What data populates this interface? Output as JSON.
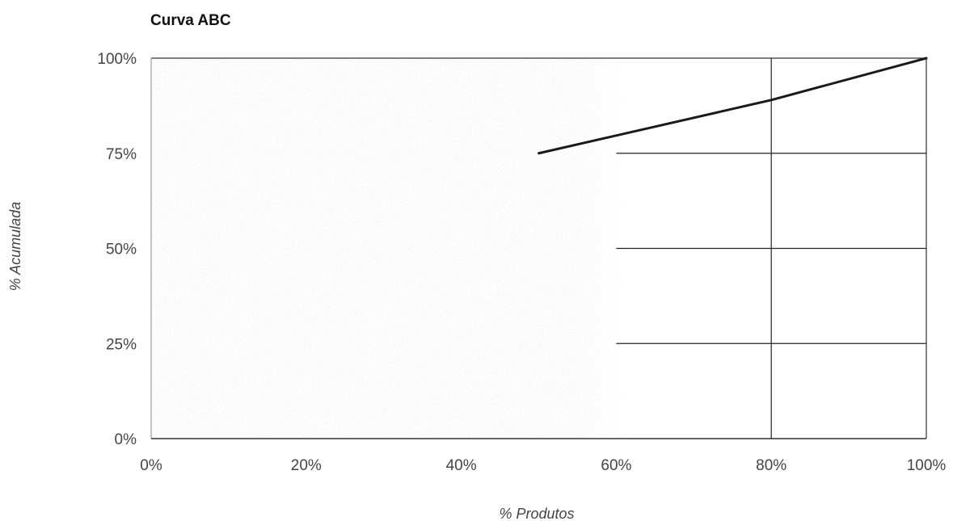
{
  "chart_data": {
    "type": "line",
    "title": "Curva ABC",
    "xlabel": "% Produtos",
    "ylabel": "% Acumulada",
    "xlim": [
      0,
      100
    ],
    "ylim": [
      0,
      100
    ],
    "x_ticks": [
      "0%",
      "20%",
      "40%",
      "60%",
      "80%",
      "100%"
    ],
    "y_ticks": [
      "0%",
      "25%",
      "50%",
      "75%",
      "100%"
    ],
    "series": [
      {
        "x": [
          50,
          80,
          100
        ],
        "y": [
          75,
          89,
          100
        ],
        "color": "#1a1a1a"
      }
    ],
    "reference_lines": {
      "horizontal": [
        {
          "y": 25,
          "x_from": 60,
          "x_to": 100
        },
        {
          "y": 50,
          "x_from": 60,
          "x_to": 100
        },
        {
          "y": 75,
          "x_from": 60,
          "x_to": 100
        }
      ],
      "vertical": [
        {
          "x": 80,
          "y_from": 0,
          "y_to": 100
        }
      ]
    },
    "grid": false,
    "legend": "none",
    "colors": {
      "line": "#1a1a1a",
      "axis": "#333333",
      "text": "#444444",
      "shading": "#dcdcdc"
    }
  }
}
